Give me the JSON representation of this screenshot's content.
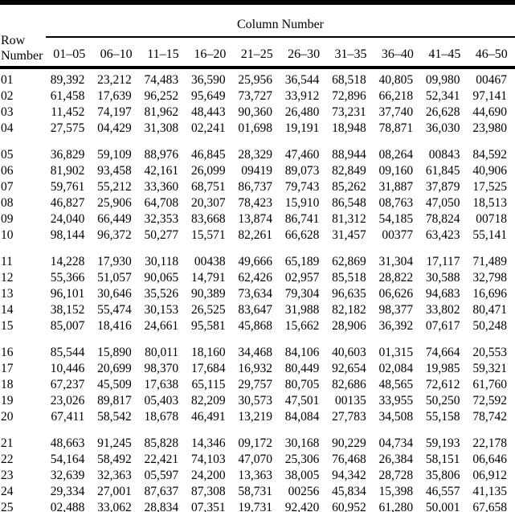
{
  "colors": {
    "text": "#000000",
    "background": "#ffffff",
    "rule": "#000000"
  },
  "table": {
    "title": "Column Number",
    "row_header": [
      "Row",
      "Number"
    ],
    "column_headers": [
      "01–05",
      "06–10",
      "11–15",
      "16–20",
      "21–25",
      "26–30",
      "31–35",
      "36–40",
      "41–45",
      "46–50"
    ],
    "group_break_after": [
      "04",
      "10",
      "15",
      "20"
    ],
    "rows": [
      {
        "row": "01",
        "values": [
          "89,392",
          "23,212",
          "74,483",
          "36,590",
          "25,956",
          "36,544",
          "68,518",
          "40,805",
          "09,980",
          "00467"
        ]
      },
      {
        "row": "02",
        "values": [
          "61,458",
          "17,639",
          "96,252",
          "95,649",
          "73,727",
          "33,912",
          "72,896",
          "66,218",
          "52,341",
          "97,141"
        ]
      },
      {
        "row": "03",
        "values": [
          "11,452",
          "74,197",
          "81,962",
          "48,443",
          "90,360",
          "26,480",
          "73,231",
          "37,740",
          "26,628",
          "44,690"
        ]
      },
      {
        "row": "04",
        "values": [
          "27,575",
          "04,429",
          "31,308",
          "02,241",
          "01,698",
          "19,191",
          "18,948",
          "78,871",
          "36,030",
          "23,980"
        ]
      },
      {
        "row": "05",
        "values": [
          "36,829",
          "59,109",
          "88,976",
          "46,845",
          "28,329",
          "47,460",
          "88,944",
          "08,264",
          "00843",
          "84,592"
        ]
      },
      {
        "row": "06",
        "values": [
          "81,902",
          "93,458",
          "42,161",
          "26,099",
          "09419",
          "89,073",
          "82,849",
          "09,160",
          "61,845",
          "40,906"
        ]
      },
      {
        "row": "07",
        "values": [
          "59,761",
          "55,212",
          "33,360",
          "68,751",
          "86,737",
          "79,743",
          "85,262",
          "31,887",
          "37,879",
          "17,525"
        ]
      },
      {
        "row": "08",
        "values": [
          "46,827",
          "25,906",
          "64,708",
          "20,307",
          "78,423",
          "15,910",
          "86,548",
          "08,763",
          "47,050",
          "18,513"
        ]
      },
      {
        "row": "09",
        "values": [
          "24,040",
          "66,449",
          "32,353",
          "83,668",
          "13,874",
          "86,741",
          "81,312",
          "54,185",
          "78,824",
          "00718"
        ]
      },
      {
        "row": "10",
        "values": [
          "98,144",
          "96,372",
          "50,277",
          "15,571",
          "82,261",
          "66,628",
          "31,457",
          "00377",
          "63,423",
          "55,141"
        ]
      },
      {
        "row": "11",
        "values": [
          "14,228",
          "17,930",
          "30,118",
          "00438",
          "49,666",
          "65,189",
          "62,869",
          "31,304",
          "17,117",
          "71,489"
        ]
      },
      {
        "row": "12",
        "values": [
          "55,366",
          "51,057",
          "90,065",
          "14,791",
          "62,426",
          "02,957",
          "85,518",
          "28,822",
          "30,588",
          "32,798"
        ]
      },
      {
        "row": "13",
        "values": [
          "96,101",
          "30,646",
          "35,526",
          "90,389",
          "73,634",
          "79,304",
          "96,635",
          "06,626",
          "94,683",
          "16,696"
        ]
      },
      {
        "row": "14",
        "values": [
          "38,152",
          "55,474",
          "30,153",
          "26,525",
          "83,647",
          "31,988",
          "82,182",
          "98,377",
          "33,802",
          "80,471"
        ]
      },
      {
        "row": "15",
        "values": [
          "85,007",
          "18,416",
          "24,661",
          "95,581",
          "45,868",
          "15,662",
          "28,906",
          "36,392",
          "07,617",
          "50,248"
        ]
      },
      {
        "row": "16",
        "values": [
          "85,544",
          "15,890",
          "80,011",
          "18,160",
          "34,468",
          "84,106",
          "40,603",
          "01,315",
          "74,664",
          "20,553"
        ]
      },
      {
        "row": "17",
        "values": [
          "10,446",
          "20,699",
          "98,370",
          "17,684",
          "16,932",
          "80,449",
          "92,654",
          "02,084",
          "19,985",
          "59,321"
        ]
      },
      {
        "row": "18",
        "values": [
          "67,237",
          "45,509",
          "17,638",
          "65,115",
          "29,757",
          "80,705",
          "82,686",
          "48,565",
          "72,612",
          "61,760"
        ]
      },
      {
        "row": "19",
        "values": [
          "23,026",
          "89,817",
          "05,403",
          "82,209",
          "30,573",
          "47,501",
          "00135",
          "33,955",
          "50,250",
          "72,592"
        ]
      },
      {
        "row": "20",
        "values": [
          "67,411",
          "58,542",
          "18,678",
          "46,491",
          "13,219",
          "84,084",
          "27,783",
          "34,508",
          "55,158",
          "78,742"
        ]
      },
      {
        "row": "21",
        "values": [
          "48,663",
          "91,245",
          "85,828",
          "14,346",
          "09,172",
          "30,168",
          "90,229",
          "04,734",
          "59,193",
          "22,178"
        ]
      },
      {
        "row": "22",
        "values": [
          "54,164",
          "58,492",
          "22,421",
          "74,103",
          "47,070",
          "25,306",
          "76,468",
          "26,384",
          "58,151",
          "06,646"
        ]
      },
      {
        "row": "23",
        "values": [
          "32,639",
          "32,363",
          "05,597",
          "24,200",
          "13,363",
          "38,005",
          "94,342",
          "28,728",
          "35,806",
          "06,912"
        ]
      },
      {
        "row": "24",
        "values": [
          "29,334",
          "27,001",
          "87,637",
          "87,308",
          "58,731",
          "00256",
          "45,834",
          "15,398",
          "46,557",
          "41,135"
        ]
      },
      {
        "row": "25",
        "values": [
          "02,488",
          "33,062",
          "28,834",
          "07,351",
          "19,731",
          "92,420",
          "60,952",
          "61,280",
          "50,001",
          "67,658"
        ]
      }
    ]
  }
}
